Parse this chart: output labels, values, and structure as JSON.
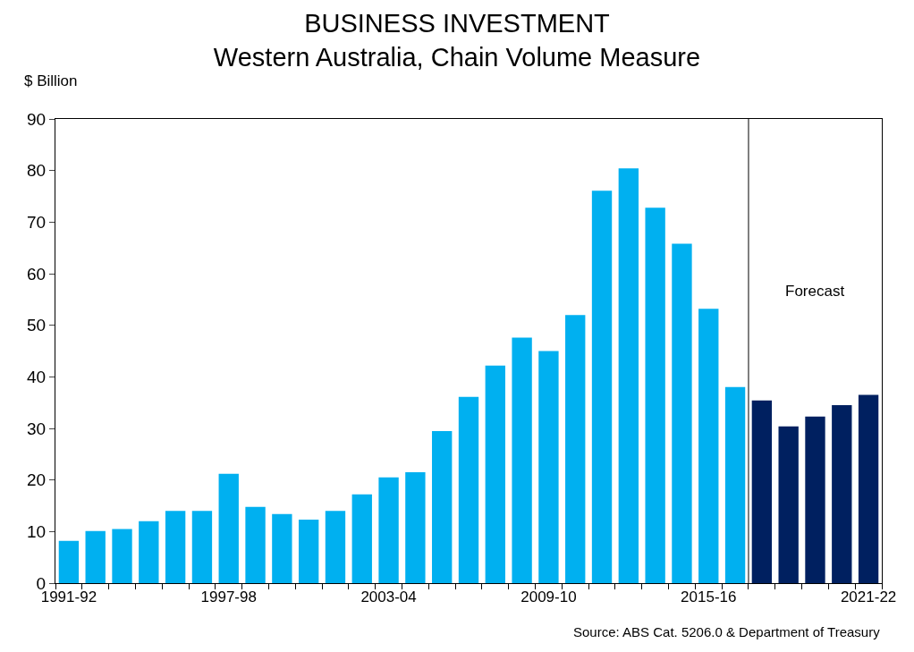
{
  "chart_data": {
    "type": "bar",
    "title": "BUSINESS INVESTMENT",
    "subtitle": "Western Australia, Chain Volume Measure",
    "ylabel": "$ Billion",
    "categories": [
      "1991-92",
      null,
      null,
      null,
      null,
      null,
      "1997-98",
      null,
      null,
      null,
      null,
      null,
      "2003-04",
      null,
      null,
      null,
      null,
      null,
      "2009-10",
      null,
      null,
      null,
      null,
      null,
      "2015-16",
      null,
      null,
      null,
      null,
      null,
      "2021-22"
    ],
    "values": [
      8.2,
      10.1,
      10.5,
      12,
      14,
      14,
      21.2,
      14.8,
      13.4,
      12.3,
      14,
      17.2,
      20.5,
      21.5,
      29.5,
      36.1,
      42.2,
      47.6,
      45,
      52,
      76.1,
      80.4,
      72.8,
      65.8,
      53.2,
      38,
      35.4,
      30.4,
      32.3,
      34.5,
      36.5
    ],
    "colors": [
      "#00b0f0",
      "#00b0f0",
      "#00b0f0",
      "#00b0f0",
      "#00b0f0",
      "#00b0f0",
      "#00b0f0",
      "#00b0f0",
      "#00b0f0",
      "#00b0f0",
      "#00b0f0",
      "#00b0f0",
      "#00b0f0",
      "#00b0f0",
      "#00b0f0",
      "#00b0f0",
      "#00b0f0",
      "#00b0f0",
      "#00b0f0",
      "#00b0f0",
      "#00b0f0",
      "#00b0f0",
      "#00b0f0",
      "#00b0f0",
      "#00b0f0",
      "#00b0f0",
      "#002060",
      "#002060",
      "#002060",
      "#002060",
      "#002060"
    ],
    "ylim": [
      0,
      90
    ],
    "yticks": [
      0,
      10,
      20,
      30,
      40,
      50,
      60,
      70,
      80,
      90
    ],
    "annotations": [
      "Forecast",
      "Source: ABS Cat. 5206.0 & Department of Treasury"
    ]
  }
}
